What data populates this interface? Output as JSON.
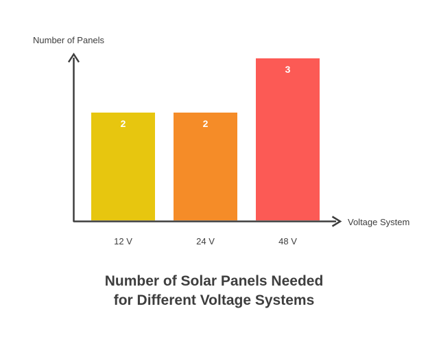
{
  "chart_data": {
    "type": "bar",
    "title": "Number of Solar Panels Needed for Different Voltage Systems",
    "title_lines": [
      "Number of Solar Panels Needed",
      "for Different Voltage Systems"
    ],
    "xlabel": "Voltage System",
    "ylabel": "Number of Panels",
    "categories": [
      "12 V",
      "24 V",
      "48 V"
    ],
    "values": [
      2,
      2,
      3
    ],
    "bar_colors": [
      "#E7C60F",
      "#F58C28",
      "#FC5A55"
    ],
    "value_label_color": "#FFFFFF",
    "axis_color": "#3D3D3D",
    "label_color": "#3D3D3D",
    "title_color": "#3E3E3E",
    "background_color": "#FFFFFF",
    "ylim": [
      0,
      3
    ],
    "grid": false,
    "legend": false
  }
}
